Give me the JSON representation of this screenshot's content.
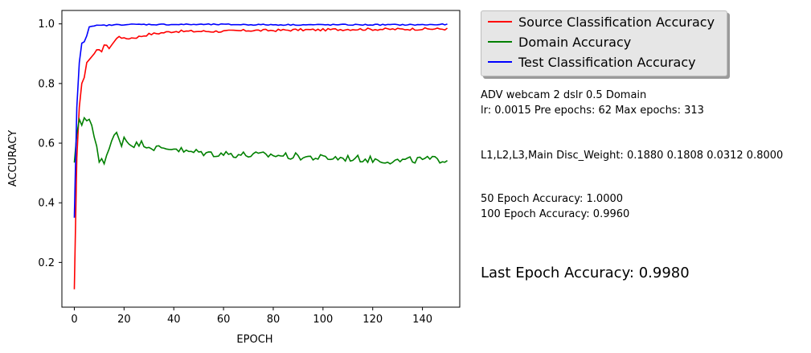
{
  "chart_data": {
    "type": "line",
    "title": "",
    "xlabel": "EPOCH",
    "ylabel": "ACCURACY",
    "xlim": [
      -5,
      155
    ],
    "ylim": [
      0.05,
      1.045
    ],
    "xticks": [
      0,
      20,
      40,
      60,
      80,
      100,
      120,
      140
    ],
    "yticks": [
      0.2,
      0.4,
      0.6,
      0.8,
      1.0
    ],
    "ytick_labels": [
      "0.2",
      "0.4",
      "0.6",
      "0.8",
      "1.0"
    ],
    "grid": false,
    "legend_position": "outside-right-top",
    "series": [
      {
        "name": "Source Classification Accuracy",
        "color": "#ff0000",
        "keypoints": [
          [
            0,
            0.11
          ],
          [
            1,
            0.55
          ],
          [
            2,
            0.72
          ],
          [
            3,
            0.8
          ],
          [
            4,
            0.82
          ],
          [
            5,
            0.87
          ],
          [
            7,
            0.89
          ],
          [
            8,
            0.9
          ],
          [
            9,
            0.91
          ],
          [
            11,
            0.91
          ],
          [
            12,
            0.93
          ],
          [
            14,
            0.92
          ],
          [
            16,
            0.94
          ],
          [
            18,
            0.96
          ],
          [
            20,
            0.95
          ],
          [
            25,
            0.955
          ],
          [
            30,
            0.965
          ],
          [
            35,
            0.97
          ],
          [
            40,
            0.975
          ],
          [
            50,
            0.975
          ],
          [
            60,
            0.975
          ],
          [
            70,
            0.978
          ],
          [
            80,
            0.978
          ],
          [
            90,
            0.98
          ],
          [
            100,
            0.98
          ],
          [
            110,
            0.982
          ],
          [
            120,
            0.982
          ],
          [
            130,
            0.982
          ],
          [
            140,
            0.983
          ],
          [
            150,
            0.983
          ]
        ],
        "noise": 0.004
      },
      {
        "name": "Domain Accuracy",
        "color": "#008000",
        "keypoints": [
          [
            0,
            0.535
          ],
          [
            1,
            0.63
          ],
          [
            2,
            0.68
          ],
          [
            3,
            0.66
          ],
          [
            4,
            0.685
          ],
          [
            5,
            0.675
          ],
          [
            6,
            0.68
          ],
          [
            7,
            0.66
          ],
          [
            8,
            0.62
          ],
          [
            9,
            0.58
          ],
          [
            10,
            0.54
          ],
          [
            11,
            0.55
          ],
          [
            12,
            0.54
          ],
          [
            13,
            0.56
          ],
          [
            14,
            0.58
          ],
          [
            15,
            0.6
          ],
          [
            16,
            0.625
          ],
          [
            17,
            0.63
          ],
          [
            18,
            0.615
          ],
          [
            19,
            0.6
          ],
          [
            20,
            0.62
          ],
          [
            22,
            0.6
          ],
          [
            25,
            0.595
          ],
          [
            28,
            0.6
          ],
          [
            30,
            0.59
          ],
          [
            35,
            0.58
          ],
          [
            40,
            0.585
          ],
          [
            45,
            0.57
          ],
          [
            50,
            0.57
          ],
          [
            55,
            0.565
          ],
          [
            60,
            0.565
          ],
          [
            70,
            0.56
          ],
          [
            80,
            0.56
          ],
          [
            90,
            0.555
          ],
          [
            100,
            0.55
          ],
          [
            110,
            0.55
          ],
          [
            120,
            0.545
          ],
          [
            130,
            0.54
          ],
          [
            140,
            0.545
          ],
          [
            150,
            0.545
          ]
        ],
        "noise": 0.012
      },
      {
        "name": "Test Classification Accuracy",
        "color": "#0000ff",
        "keypoints": [
          [
            0,
            0.35
          ],
          [
            1,
            0.72
          ],
          [
            2,
            0.87
          ],
          [
            3,
            0.935
          ],
          [
            4,
            0.94
          ],
          [
            5,
            0.96
          ],
          [
            6,
            0.99
          ],
          [
            7,
            0.992
          ],
          [
            9,
            0.994
          ],
          [
            12,
            0.995
          ],
          [
            15,
            0.996
          ],
          [
            20,
            0.998
          ],
          [
            30,
            0.998
          ],
          [
            40,
            0.998
          ],
          [
            60,
            0.998
          ],
          [
            80,
            0.997
          ],
          [
            100,
            0.997
          ],
          [
            120,
            0.997
          ],
          [
            140,
            0.997
          ],
          [
            150,
            0.998
          ]
        ],
        "noise": 0.002
      }
    ]
  },
  "info": {
    "line1": "ADV webcam 2 dslr 0.5 Domain",
    "line2": "lr: 0.0015 Pre epochs: 62 Max epochs: 313",
    "weights": "L1,L2,L3,Main Disc_Weight: 0.1880 0.1808 0.0312 0.8000",
    "acc50": "50 Epoch Accuracy: 1.0000",
    "acc100": "100 Epoch Accuracy: 0.9960",
    "last": "Last Epoch Accuracy: 0.9980"
  },
  "colors": {
    "source": "#ff0000",
    "domain": "#008000",
    "test": "#0000ff"
  }
}
